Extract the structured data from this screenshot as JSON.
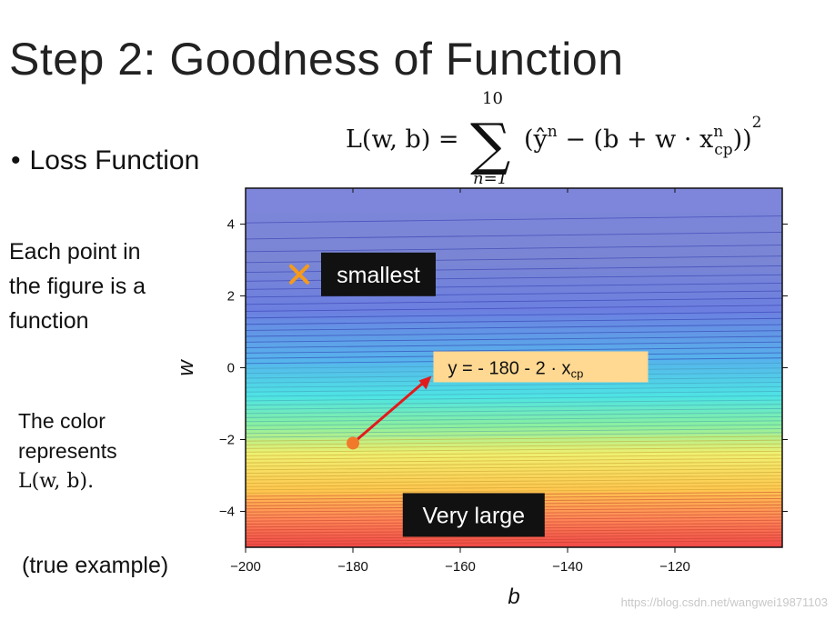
{
  "slide": {
    "title": "Step 2: Goodness of Function",
    "bullet": "Loss Function",
    "point_text": [
      "Each point in",
      "the figure is a",
      "function"
    ],
    "color_text": [
      "The color",
      "represents"
    ],
    "color_formula": "L(w, b).",
    "example_text": "(true example)",
    "watermark": "https://blog.csdn.net/wangwei19871103"
  },
  "formula": {
    "lhs": "L(w, b) =",
    "sum_top": "10",
    "sum_bottom": "n=1",
    "sum_symbol": "∑",
    "body_open": "(ŷ",
    "body_sup": "n",
    "body_mid": " − (b + w · x",
    "x_sup": "n",
    "x_sub": "cp",
    "body_close": "))",
    "power": "2"
  },
  "chart_data": {
    "type": "heatmap",
    "title": "",
    "xlabel": "b",
    "ylabel": "w",
    "xlim": [
      -200,
      -100
    ],
    "ylim": [
      -5,
      5
    ],
    "x_ticks": [
      -200,
      -180,
      -160,
      -140,
      -120
    ],
    "x_tick_labels": [
      "−200",
      "−180",
      "−160",
      "−140",
      "−120"
    ],
    "y_ticks": [
      4,
      2,
      0,
      -2,
      -4
    ],
    "y_tick_labels": [
      "4",
      "2",
      "0",
      "−2",
      "−4"
    ],
    "colormap_note": "blue = low loss, red = high loss",
    "annotations": [
      {
        "name": "smallest",
        "text": "smallest",
        "b": -188,
        "w": 2.6,
        "marker": "x",
        "marker_b": -190,
        "marker_w": 2.6
      },
      {
        "name": "example-function",
        "text_main": "y = - 180 - 2 · x",
        "text_sub": "cp",
        "b": -180,
        "w": -2.1,
        "label_b": -165,
        "label_w": 0.0
      },
      {
        "name": "very-large",
        "text": "Very large",
        "b": -158,
        "w": -4.1
      }
    ],
    "colors": {
      "marker_x": "#f59a1c",
      "point": "#f07a2a",
      "arrow": "#e31a1c",
      "label_bg": "#ffd891",
      "dark_box": "#111111"
    }
  }
}
